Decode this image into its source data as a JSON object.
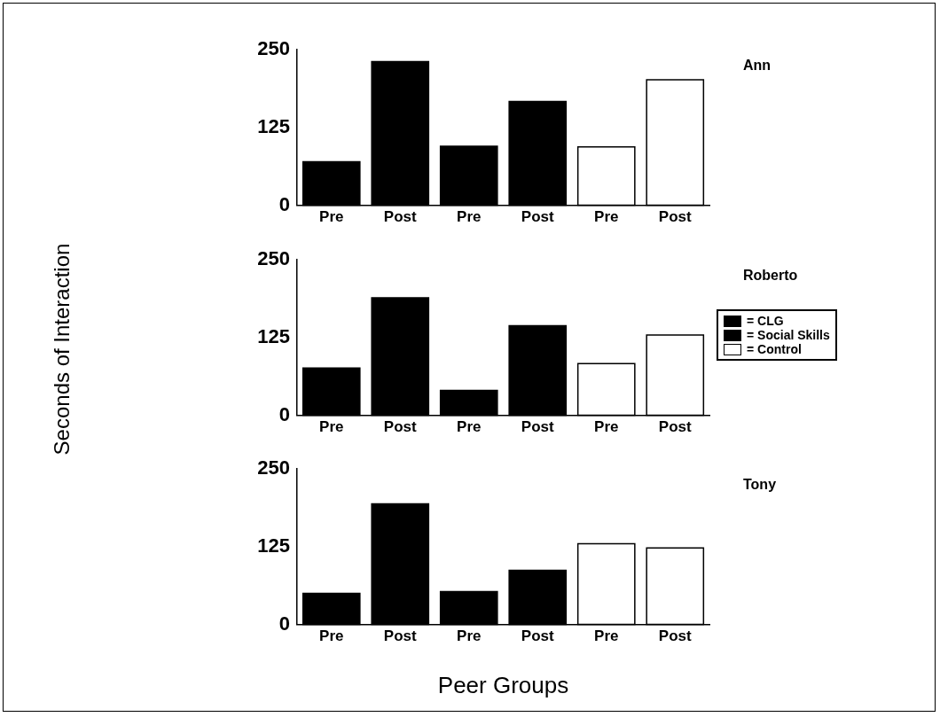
{
  "chart_data": [
    {
      "type": "bar",
      "annotations": [
        "Ann"
      ],
      "categories": [
        "Pre",
        "Post",
        "Pre",
        "Post",
        "Pre",
        "Post"
      ],
      "ylim": [
        0,
        250
      ],
      "yticks": [
        0,
        125,
        250
      ],
      "grid": false,
      "legend": false,
      "series": [
        {
          "color": "#000000",
          "values": [
            70,
            231,
            null,
            null,
            null,
            null
          ]
        },
        {
          "color": "#000000",
          "values": [
            null,
            null,
            95,
            167,
            null,
            null
          ]
        },
        {
          "color": "#ffffff",
          "values": [
            null,
            null,
            null,
            null,
            94,
            202
          ]
        }
      ]
    },
    {
      "type": "bar",
      "annotations": [
        "Roberto"
      ],
      "ylabel": "Seconds of Interaction",
      "categories": [
        "Pre",
        "Post",
        "Pre",
        "Post",
        "Pre",
        "Post"
      ],
      "ylim": [
        0,
        250
      ],
      "yticks": [
        0,
        125,
        250
      ],
      "grid": false,
      "legend": "right",
      "series": [
        {
          "name": "= CLG",
          "color": "#000000",
          "values": [
            76,
            189,
            null,
            null,
            null,
            null
          ]
        },
        {
          "name": "= Social Skills",
          "color": "#000000",
          "values": [
            null,
            null,
            40,
            144,
            null,
            null
          ]
        },
        {
          "name": "= Control",
          "color": "#ffffff",
          "values": [
            null,
            null,
            null,
            null,
            83,
            129
          ]
        }
      ]
    },
    {
      "type": "bar",
      "annotations": [
        "Tony"
      ],
      "xlabel": "Peer Groups",
      "categories": [
        "Pre",
        "Post",
        "Pre",
        "Post",
        "Pre",
        "Post"
      ],
      "ylim": [
        0,
        250
      ],
      "yticks": [
        0,
        125,
        250
      ],
      "grid": false,
      "legend": false,
      "series": [
        {
          "color": "#000000",
          "values": [
            50,
            194,
            null,
            null,
            null,
            null
          ]
        },
        {
          "color": "#000000",
          "values": [
            null,
            null,
            53,
            87,
            null,
            null
          ]
        },
        {
          "color": "#ffffff",
          "values": [
            null,
            null,
            null,
            null,
            130,
            123
          ]
        }
      ]
    }
  ]
}
